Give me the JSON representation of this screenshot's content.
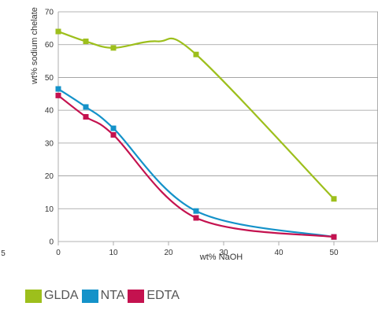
{
  "chart_data": {
    "type": "line",
    "xlabel": "wt% NaOH",
    "ylabel": "wt% sodium chelate",
    "xlim": [
      0,
      58
    ],
    "ylim": [
      0,
      70
    ],
    "xticks": [
      0,
      10,
      20,
      30,
      40,
      50
    ],
    "yticks": [
      0,
      10,
      20,
      30,
      40,
      50,
      60,
      70
    ],
    "grid": "horizontal",
    "stray_tick_label": "5",
    "series": [
      {
        "name": "GLDA",
        "color": "#9dbf1c",
        "x": [
          0,
          5,
          10,
          25,
          50
        ],
        "y": [
          64,
          61,
          59,
          57,
          13
        ],
        "curve_via": [
          [
            18,
            61
          ]
        ]
      },
      {
        "name": "NTA",
        "color": "#1492c9",
        "x": [
          0,
          5,
          10,
          25,
          50
        ],
        "y": [
          46.5,
          41,
          34.5,
          9.3,
          1.4
        ]
      },
      {
        "name": "EDTA",
        "color": "#c4124f",
        "x": [
          0,
          5,
          10,
          25,
          50
        ],
        "y": [
          44.5,
          38,
          32.5,
          7.2,
          1.4
        ]
      }
    ]
  }
}
